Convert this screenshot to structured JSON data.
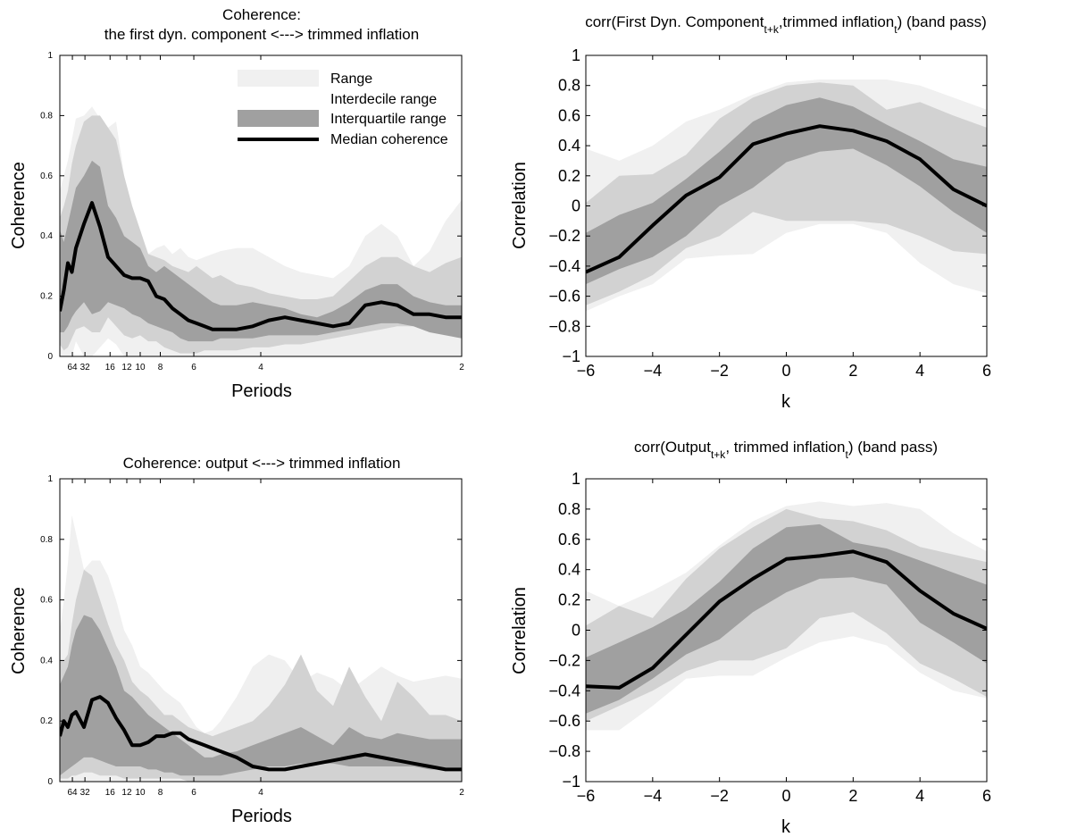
{
  "chart_data": [
    {
      "id": "coh1",
      "type": "area",
      "title_lines": [
        "Coherence:",
        "the first dyn. component <---> trimmed inflation"
      ],
      "xlabel": "Periods",
      "ylabel": "Coherence",
      "ylim": [
        0,
        1
      ],
      "ytick_labels": [
        "0",
        "0.2",
        "0.4",
        "0.6",
        "0.8",
        "1"
      ],
      "yticks": [
        0,
        0.2,
        0.4,
        0.6,
        0.8,
        1
      ],
      "xlim": [
        0,
        0.5
      ],
      "xticks": [
        0.015625,
        0.03125,
        0.0625,
        0.08333,
        0.1,
        0.125,
        0.1667,
        0.25,
        0.5
      ],
      "xtick_labels": [
        "64",
        "32",
        "16",
        "12",
        "10",
        "8",
        "6",
        "4",
        "2"
      ],
      "legend": {
        "position": "top-right",
        "entries": [
          "Range",
          "Interdecile range",
          "Interquartile range",
          "Median coherence"
        ]
      },
      "x": [
        0,
        0.005,
        0.01,
        0.015,
        0.02,
        0.03,
        0.04,
        0.05,
        0.06,
        0.07,
        0.08,
        0.09,
        0.1,
        0.11,
        0.12,
        0.13,
        0.14,
        0.15,
        0.16,
        0.17,
        0.18,
        0.19,
        0.2,
        0.22,
        0.24,
        0.26,
        0.28,
        0.3,
        0.32,
        0.34,
        0.36,
        0.38,
        0.4,
        0.42,
        0.44,
        0.46,
        0.48,
        0.5
      ],
      "series": [
        {
          "name": "Range",
          "lower": [
            0,
            0,
            0,
            0,
            0.05,
            0,
            0,
            0.03,
            0.06,
            0.04,
            0,
            0,
            0,
            0,
            0,
            0,
            0,
            0,
            0,
            0,
            0,
            0,
            0,
            0,
            0,
            0,
            0,
            0,
            0,
            0,
            0,
            0,
            0,
            0,
            0,
            0,
            0,
            0
          ],
          "upper": [
            0.55,
            0.6,
            0.65,
            0.72,
            0.79,
            0.8,
            0.83,
            0.79,
            0.76,
            0.78,
            0.6,
            0.42,
            0.4,
            0.34,
            0.36,
            0.37,
            0.34,
            0.36,
            0.33,
            0.32,
            0.33,
            0.34,
            0.35,
            0.36,
            0.36,
            0.33,
            0.3,
            0.28,
            0.27,
            0.26,
            0.3,
            0.4,
            0.44,
            0.4,
            0.3,
            0.35,
            0.45,
            0.52
          ]
        },
        {
          "name": "Interdecile range",
          "lower": [
            0.04,
            0.02,
            0.03,
            0.06,
            0.09,
            0.1,
            0.08,
            0.08,
            0.13,
            0.1,
            0.07,
            0.06,
            0.07,
            0.05,
            0.05,
            0.03,
            0.02,
            0.01,
            0.01,
            0.01,
            0.02,
            0.02,
            0.02,
            0.02,
            0.03,
            0.03,
            0.04,
            0.04,
            0.05,
            0.06,
            0.07,
            0.08,
            0.09,
            0.1,
            0.1,
            0.1,
            0.1,
            0.1
          ],
          "upper": [
            0.46,
            0.5,
            0.55,
            0.64,
            0.7,
            0.78,
            0.8,
            0.8,
            0.76,
            0.72,
            0.6,
            0.5,
            0.42,
            0.34,
            0.33,
            0.32,
            0.3,
            0.29,
            0.28,
            0.3,
            0.28,
            0.26,
            0.27,
            0.24,
            0.23,
            0.21,
            0.2,
            0.19,
            0.19,
            0.2,
            0.25,
            0.3,
            0.33,
            0.33,
            0.3,
            0.28,
            0.31,
            0.33
          ]
        },
        {
          "name": "Interquartile range",
          "lower": [
            0.08,
            0.08,
            0.1,
            0.13,
            0.15,
            0.18,
            0.14,
            0.15,
            0.18,
            0.17,
            0.16,
            0.14,
            0.13,
            0.11,
            0.1,
            0.09,
            0.08,
            0.06,
            0.05,
            0.05,
            0.05,
            0.05,
            0.06,
            0.06,
            0.06,
            0.07,
            0.07,
            0.07,
            0.07,
            0.08,
            0.09,
            0.1,
            0.11,
            0.11,
            0.1,
            0.08,
            0.07,
            0.06
          ]
        },
        {
          "name": "Median coherence",
          "values": [
            0.15,
            0.22,
            0.31,
            0.28,
            0.36,
            0.44,
            0.51,
            0.43,
            0.33,
            0.3,
            0.27,
            0.26,
            0.26,
            0.25,
            0.2,
            0.19,
            0.16,
            0.14,
            0.12,
            0.11,
            0.1,
            0.09,
            0.09,
            0.09,
            0.1,
            0.12,
            0.13,
            0.12,
            0.11,
            0.1,
            0.11,
            0.17,
            0.18,
            0.17,
            0.14,
            0.14,
            0.13,
            0.13
          ]
        }
      ],
      "iqr_upper": [
        0.42,
        0.38,
        0.44,
        0.5,
        0.56,
        0.6,
        0.65,
        0.63,
        0.5,
        0.46,
        0.4,
        0.38,
        0.36,
        0.3,
        0.28,
        0.3,
        0.28,
        0.26,
        0.24,
        0.22,
        0.2,
        0.18,
        0.17,
        0.17,
        0.18,
        0.17,
        0.16,
        0.14,
        0.13,
        0.15,
        0.18,
        0.22,
        0.24,
        0.24,
        0.2,
        0.18,
        0.17,
        0.17
      ]
    },
    {
      "id": "corr1",
      "type": "area",
      "title_main": "corr(First Dyn. Component",
      "title_sub1": "t+k",
      "title_mid": ",trimmed inflation",
      "title_sub2": "t",
      "title_end": ") (band pass)",
      "xlabel": "k",
      "ylabel": "Correlation",
      "xlim": [
        -6,
        6
      ],
      "ylim": [
        -1,
        1
      ],
      "xticks": [
        -6,
        -4,
        -2,
        0,
        2,
        4,
        6
      ],
      "xtick_labels": [
        "−6",
        "−4",
        "−2",
        "0",
        "2",
        "4",
        "6"
      ],
      "yticks": [
        -1,
        -0.8,
        -0.6,
        -0.4,
        -0.2,
        0,
        0.2,
        0.4,
        0.6,
        0.8,
        1
      ],
      "ytick_labels": [
        "−1",
        "−0.8",
        "−0.6",
        "−0.4",
        "−0.2",
        "0",
        "0.2",
        "0.4",
        "0.6",
        "0.8",
        "1"
      ],
      "x": [
        -6,
        -5,
        -4,
        -3,
        -2,
        -1,
        0,
        1,
        2,
        3,
        4,
        5,
        6
      ],
      "range_lower": [
        -0.7,
        -0.6,
        -0.52,
        -0.35,
        -0.33,
        -0.32,
        -0.18,
        -0.12,
        -0.12,
        -0.18,
        -0.38,
        -0.52,
        -0.58
      ],
      "range_upper": [
        0.38,
        0.3,
        0.4,
        0.56,
        0.64,
        0.74,
        0.82,
        0.84,
        0.84,
        0.84,
        0.8,
        0.72,
        0.64
      ],
      "interdecile_lower": [
        -0.66,
        -0.57,
        -0.46,
        -0.28,
        -0.2,
        -0.04,
        -0.1,
        -0.1,
        -0.1,
        -0.12,
        -0.2,
        -0.3,
        -0.32
      ],
      "interdecile_upper": [
        0.02,
        0.2,
        0.21,
        0.34,
        0.58,
        0.72,
        0.8,
        0.82,
        0.8,
        0.64,
        0.69,
        0.6,
        0.52
      ],
      "iqr_lower": [
        -0.52,
        -0.42,
        -0.34,
        -0.2,
        0.0,
        0.12,
        0.29,
        0.36,
        0.38,
        0.27,
        0.13,
        -0.04,
        -0.18
      ],
      "iqr_upper": [
        -0.18,
        -0.06,
        0.02,
        0.18,
        0.36,
        0.56,
        0.67,
        0.72,
        0.66,
        0.54,
        0.43,
        0.31,
        0.26
      ],
      "median": [
        -0.44,
        -0.34,
        -0.13,
        0.07,
        0.19,
        0.41,
        0.48,
        0.53,
        0.5,
        0.43,
        0.31,
        0.11,
        0.0
      ]
    },
    {
      "id": "coh2",
      "type": "area",
      "title_lines": [
        "Coherence: output <---> trimmed inflation"
      ],
      "xlabel": "Periods",
      "ylabel": "Coherence",
      "ylim": [
        0,
        1
      ],
      "ytick_labels": [
        "0",
        "0.2",
        "0.4",
        "0.6",
        "0.8",
        "1"
      ],
      "yticks": [
        0,
        0.2,
        0.4,
        0.6,
        0.8,
        1
      ],
      "xlim": [
        0,
        0.5
      ],
      "xticks": [
        0.015625,
        0.03125,
        0.0625,
        0.08333,
        0.1,
        0.125,
        0.1667,
        0.25,
        0.5
      ],
      "xtick_labels": [
        "64",
        "32",
        "16",
        "12",
        "10",
        "8",
        "6",
        "4",
        "2"
      ],
      "x": [
        0,
        0.005,
        0.01,
        0.015,
        0.02,
        0.03,
        0.04,
        0.05,
        0.06,
        0.07,
        0.08,
        0.09,
        0.1,
        0.11,
        0.12,
        0.13,
        0.14,
        0.15,
        0.16,
        0.17,
        0.18,
        0.19,
        0.2,
        0.22,
        0.24,
        0.26,
        0.28,
        0.3,
        0.32,
        0.34,
        0.36,
        0.38,
        0.4,
        0.42,
        0.44,
        0.46,
        0.48,
        0.5
      ],
      "range_lower": [
        0,
        0,
        0,
        0,
        0,
        0,
        0,
        0,
        0,
        0,
        0,
        0,
        0,
        0,
        0,
        0,
        0,
        0,
        0,
        0,
        0,
        0,
        0,
        0,
        0,
        0,
        0,
        0,
        0,
        0,
        0,
        0,
        0,
        0,
        0,
        0,
        0,
        0
      ],
      "range_upper": [
        0.5,
        0.6,
        0.72,
        0.88,
        0.82,
        0.7,
        0.73,
        0.73,
        0.68,
        0.6,
        0.5,
        0.45,
        0.38,
        0.36,
        0.33,
        0.3,
        0.28,
        0.26,
        0.22,
        0.18,
        0.16,
        0.17,
        0.2,
        0.28,
        0.38,
        0.42,
        0.4,
        0.33,
        0.36,
        0.34,
        0.3,
        0.34,
        0.38,
        0.35,
        0.33,
        0.34,
        0.35,
        0.34
      ],
      "interdecile_lower": [
        0.01,
        0.01,
        0.01,
        0.02,
        0.02,
        0.03,
        0.03,
        0.02,
        0.02,
        0.02,
        0.01,
        0.01,
        0.01,
        0.01,
        0.01,
        0.01,
        0.01,
        0.01,
        0.0,
        0.0,
        0.0,
        0.0,
        0.0,
        0.0,
        0.0,
        0.0,
        0.0,
        0.0,
        0.0,
        0.0,
        0.0,
        0.0,
        0.0,
        0.0,
        0.0,
        0.0,
        0.0,
        0.0
      ],
      "interdecile_upper": [
        0.4,
        0.4,
        0.42,
        0.52,
        0.6,
        0.7,
        0.68,
        0.6,
        0.52,
        0.45,
        0.4,
        0.33,
        0.3,
        0.28,
        0.25,
        0.22,
        0.22,
        0.2,
        0.18,
        0.17,
        0.16,
        0.15,
        0.16,
        0.18,
        0.2,
        0.25,
        0.32,
        0.42,
        0.3,
        0.25,
        0.38,
        0.28,
        0.2,
        0.33,
        0.28,
        0.22,
        0.22,
        0.2
      ],
      "iqr_lower": [
        0.02,
        0.03,
        0.04,
        0.05,
        0.06,
        0.08,
        0.08,
        0.07,
        0.06,
        0.05,
        0.05,
        0.05,
        0.05,
        0.04,
        0.04,
        0.03,
        0.03,
        0.02,
        0.02,
        0.02,
        0.02,
        0.02,
        0.02,
        0.03,
        0.04,
        0.05,
        0.05,
        0.06,
        0.06,
        0.06,
        0.05,
        0.05,
        0.05,
        0.05,
        0.05,
        0.04,
        0.04,
        0.04
      ],
      "iqr_upper": [
        0.32,
        0.35,
        0.38,
        0.45,
        0.5,
        0.55,
        0.54,
        0.5,
        0.44,
        0.38,
        0.3,
        0.28,
        0.25,
        0.22,
        0.2,
        0.18,
        0.16,
        0.14,
        0.12,
        0.1,
        0.08,
        0.08,
        0.09,
        0.1,
        0.12,
        0.14,
        0.16,
        0.18,
        0.15,
        0.12,
        0.18,
        0.15,
        0.14,
        0.16,
        0.15,
        0.14,
        0.14,
        0.14
      ],
      "median": [
        0.15,
        0.2,
        0.18,
        0.22,
        0.23,
        0.18,
        0.27,
        0.28,
        0.26,
        0.21,
        0.17,
        0.12,
        0.12,
        0.13,
        0.15,
        0.15,
        0.16,
        0.16,
        0.14,
        0.13,
        0.12,
        0.11,
        0.1,
        0.08,
        0.05,
        0.04,
        0.04,
        0.05,
        0.06,
        0.07,
        0.08,
        0.09,
        0.08,
        0.07,
        0.06,
        0.05,
        0.04,
        0.04
      ]
    },
    {
      "id": "corr2",
      "type": "area",
      "title_main": "corr(Output",
      "title_sub1": "t+k",
      "title_mid": ", trimmed inflation",
      "title_sub2": "t",
      "title_end": ") (band pass)",
      "xlabel": "k",
      "ylabel": "Correlation",
      "xlim": [
        -6,
        6
      ],
      "ylim": [
        -1,
        1
      ],
      "xticks": [
        -6,
        -4,
        -2,
        0,
        2,
        4,
        6
      ],
      "xtick_labels": [
        "−6",
        "−4",
        "−2",
        "0",
        "2",
        "4",
        "6"
      ],
      "yticks": [
        -1,
        -0.8,
        -0.6,
        -0.4,
        -0.2,
        0,
        0.2,
        0.4,
        0.6,
        0.8,
        1
      ],
      "ytick_labels": [
        "−1",
        "−0.8",
        "−0.6",
        "−0.4",
        "−0.2",
        "0",
        "0.2",
        "0.4",
        "0.6",
        "0.8",
        "1"
      ],
      "x": [
        -6,
        -5,
        -4,
        -3,
        -2,
        -1,
        0,
        1,
        2,
        3,
        4,
        5,
        6
      ],
      "range_lower": [
        -0.66,
        -0.66,
        -0.5,
        -0.32,
        -0.3,
        -0.3,
        -0.18,
        -0.08,
        -0.04,
        -0.1,
        -0.28,
        -0.4,
        -0.45
      ],
      "range_upper": [
        0.26,
        0.16,
        0.26,
        0.38,
        0.56,
        0.72,
        0.82,
        0.85,
        0.82,
        0.84,
        0.8,
        0.64,
        0.52
      ],
      "interdecile_lower": [
        -0.6,
        -0.5,
        -0.4,
        -0.27,
        -0.2,
        -0.2,
        -0.12,
        0.08,
        0.12,
        -0.02,
        -0.22,
        -0.32,
        -0.44
      ],
      "interdecile_upper": [
        0.03,
        0.16,
        0.08,
        0.34,
        0.54,
        0.68,
        0.8,
        0.74,
        0.72,
        0.66,
        0.55,
        0.5,
        0.45
      ],
      "iqr_lower": [
        -0.55,
        -0.46,
        -0.32,
        -0.16,
        -0.06,
        0.12,
        0.25,
        0.34,
        0.35,
        0.3,
        0.05,
        -0.08,
        -0.22
      ],
      "iqr_upper": [
        -0.18,
        -0.08,
        0.02,
        0.14,
        0.32,
        0.54,
        0.68,
        0.7,
        0.58,
        0.54,
        0.46,
        0.38,
        0.3
      ],
      "median": [
        -0.37,
        -0.38,
        -0.25,
        -0.03,
        0.19,
        0.34,
        0.47,
        0.49,
        0.52,
        0.45,
        0.26,
        0.11,
        0.01
      ]
    }
  ],
  "colors": {
    "range": "#f0f0f0",
    "interdecile": "#d2d2d2",
    "iqr": "#a0a0a0",
    "median": "#000000"
  }
}
